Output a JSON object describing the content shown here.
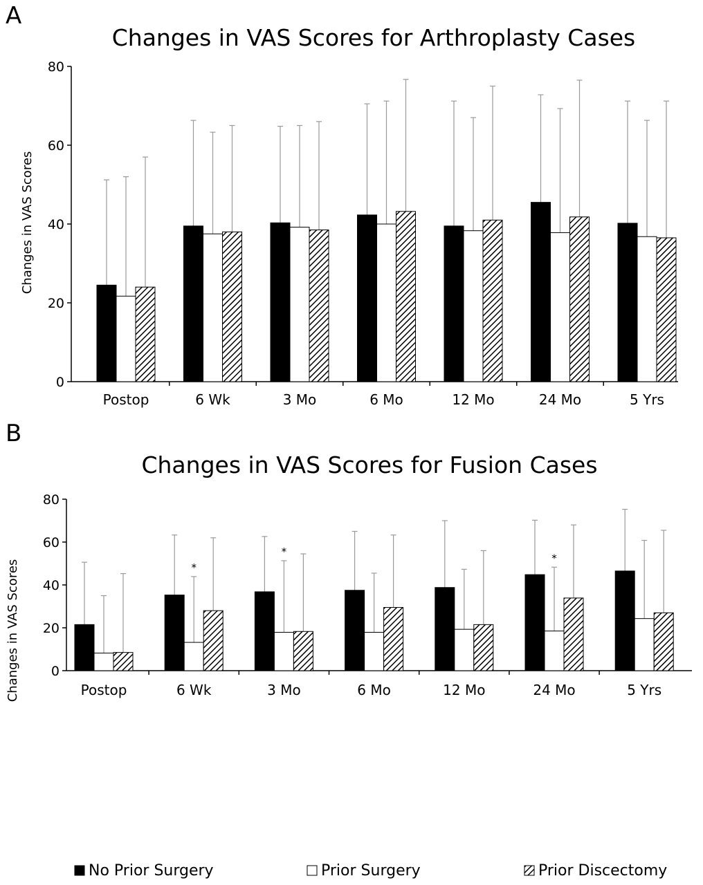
{
  "chart_data": [
    {
      "type": "bar",
      "panel_label": "A",
      "title": "Changes in VAS Scores for Arthroplasty Cases",
      "ylabel": "Changes in VAS Scores",
      "xlabel": "",
      "ylim": [
        0,
        80
      ],
      "yticks": [
        "0",
        "20",
        "40",
        "60",
        "80"
      ],
      "grid": false,
      "categories": [
        "Postop",
        "6 Wk",
        "3 Mo",
        "6 Mo",
        "12 Mo",
        "24 Mo",
        "5 Yrs"
      ],
      "series": [
        {
          "name": "No Prior Surgery",
          "values": [
            24.5,
            39.5,
            40.3,
            42.3,
            39.5,
            45.5,
            40.2
          ],
          "error_upper": [
            51.2,
            66.3,
            64.8,
            70.5,
            71.2,
            72.8,
            71.2
          ]
        },
        {
          "name": "Prior Surgery",
          "values": [
            21.7,
            37.5,
            39.2,
            40.0,
            38.3,
            37.8,
            36.8
          ],
          "error_upper": [
            52.0,
            63.3,
            65.0,
            71.2,
            67.0,
            69.3,
            66.3
          ]
        },
        {
          "name": "Prior Discectomy",
          "values": [
            24.0,
            38.0,
            38.5,
            43.2,
            41.0,
            41.8,
            36.5
          ],
          "error_upper": [
            57.0,
            65.0,
            66.0,
            76.7,
            75.0,
            76.5,
            71.2
          ]
        }
      ],
      "annotations": []
    },
    {
      "type": "bar",
      "panel_label": "B",
      "title": "Changes in VAS Scores for Fusion Cases",
      "ylabel": "Changes in VAS Scores",
      "xlabel": "",
      "ylim": [
        0,
        80
      ],
      "yticks": [
        "0",
        "20",
        "40",
        "60",
        "80"
      ],
      "grid": false,
      "categories": [
        "Postop",
        "6 Wk",
        "3 Mo",
        "6 Mo",
        "12 Mo",
        "24 Mo",
        "5 Yrs"
      ],
      "series": [
        {
          "name": "No Prior Surgery",
          "values": [
            21.5,
            35.3,
            36.8,
            37.5,
            38.8,
            44.8,
            46.5
          ],
          "error_upper": [
            50.6,
            63.3,
            62.6,
            65.0,
            70.0,
            70.2,
            75.3
          ]
        },
        {
          "name": "Prior Surgery",
          "values": [
            8.2,
            13.2,
            17.9,
            17.9,
            19.3,
            18.5,
            24.3
          ],
          "error_upper": [
            35.0,
            43.9,
            51.3,
            45.5,
            47.3,
            48.3,
            60.8
          ]
        },
        {
          "name": "Prior Discectomy",
          "values": [
            8.5,
            28.0,
            18.3,
            29.5,
            21.5,
            33.9,
            27.0
          ],
          "error_upper": [
            45.3,
            62.0,
            54.5,
            63.3,
            56.0,
            68.0,
            65.5
          ]
        }
      ],
      "annotations": [
        {
          "text": "*",
          "category": "6 Wk",
          "series": "Prior Surgery"
        },
        {
          "text": "*",
          "category": "3 Mo",
          "series": "Prior Surgery"
        },
        {
          "text": "*",
          "category": "24 Mo",
          "series": "Prior Surgery"
        }
      ]
    }
  ],
  "legend": {
    "placement": "bottom",
    "items": [
      {
        "label": "No Prior Surgery",
        "swatch": "solid-black"
      },
      {
        "label": "Prior Surgery",
        "swatch": "white"
      },
      {
        "label": "Prior Discectomy",
        "swatch": "hatched"
      }
    ]
  },
  "colors": {
    "bar_solid": "#000000",
    "bar_open": "#ffffff",
    "hatch": "#000000",
    "axis": "#000000",
    "error_bar": "#9a9a9a"
  }
}
